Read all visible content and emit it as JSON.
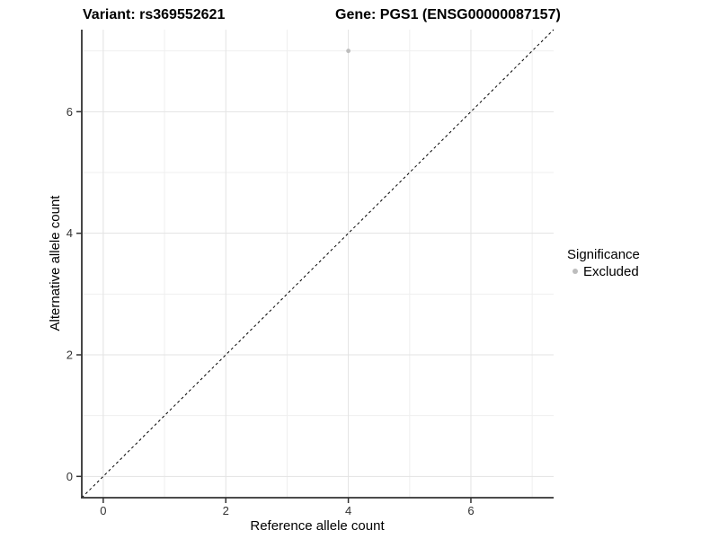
{
  "chart_data": {
    "type": "scatter",
    "title_left": "Variant: rs369552621",
    "title_right": "Gene: PGS1 (ENSG00000087157)",
    "xlabel": "Reference allele count",
    "ylabel": "Alternative allele count",
    "x_major_ticks": [
      0,
      2,
      4,
      6
    ],
    "y_major_ticks": [
      0,
      2,
      4,
      6
    ],
    "x_minor_ticks": [
      1,
      3,
      5,
      7
    ],
    "y_minor_ticks": [
      1,
      3,
      5,
      7
    ],
    "xlim": [
      -0.35,
      7.35
    ],
    "ylim": [
      -0.35,
      7.35
    ],
    "points": [
      {
        "x": 4,
        "y": 7,
        "significance": "Excluded"
      }
    ],
    "reference_line": {
      "kind": "identity y=x",
      "style": "dashed"
    },
    "legend": {
      "title": "Significance",
      "position": "right",
      "entries": [
        {
          "label": "Excluded",
          "color": "#bdbdbd"
        }
      ]
    },
    "grid": true,
    "colors": {
      "point": "#bdbdbd",
      "grid_major": "#e3e3e3",
      "grid_minor": "#efefef",
      "axis_line": "#333333",
      "reference_line": "#000000",
      "background": "#ffffff",
      "tick_mark": "#333333"
    }
  }
}
